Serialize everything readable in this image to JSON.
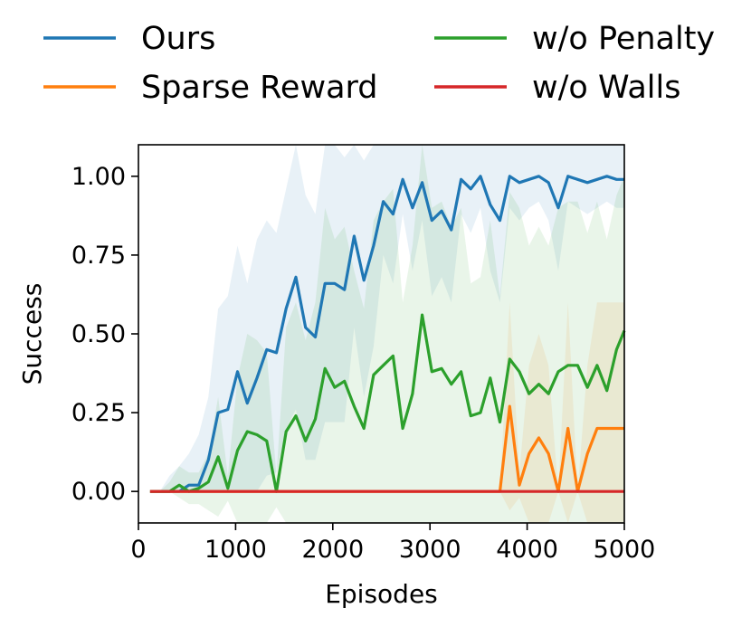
{
  "chart_data": {
    "type": "line",
    "xlabel": "Episodes",
    "ylabel": "Success",
    "xlim": [
      0,
      5000
    ],
    "ylim": [
      -0.1,
      1.1
    ],
    "xticks": [
      0,
      1000,
      2000,
      3000,
      4000,
      5000
    ],
    "xtick_labels": [
      "0",
      "1000",
      "2000",
      "3000",
      "4000",
      "5000"
    ],
    "yticks": [
      0.0,
      0.25,
      0.5,
      0.75,
      1.0
    ],
    "ytick_labels": [
      "0.00",
      "0.25",
      "0.50",
      "0.75",
      "1.00"
    ],
    "grid": false,
    "legend_position": "top",
    "x": [
      120,
      220,
      320,
      420,
      520,
      620,
      720,
      820,
      920,
      1020,
      1120,
      1220,
      1320,
      1420,
      1520,
      1620,
      1720,
      1820,
      1920,
      2020,
      2120,
      2220,
      2320,
      2420,
      2520,
      2620,
      2720,
      2820,
      2920,
      3020,
      3120,
      3220,
      3320,
      3420,
      3520,
      3620,
      3720,
      3820,
      3920,
      4020,
      4120,
      4220,
      4320,
      4420,
      4520,
      4620,
      4720,
      4820,
      4920,
      5000
    ],
    "series": [
      {
        "name": "Ours",
        "color": "#1f77b4",
        "values": [
          0,
          0,
          0,
          0,
          0.02,
          0.02,
          0.1,
          0.25,
          0.26,
          0.38,
          0.28,
          0.36,
          0.45,
          0.44,
          0.58,
          0.68,
          0.52,
          0.49,
          0.66,
          0.66,
          0.64,
          0.81,
          0.67,
          0.78,
          0.92,
          0.88,
          0.99,
          0.9,
          0.98,
          0.86,
          0.89,
          0.83,
          0.99,
          0.96,
          1.0,
          0.91,
          0.86,
          1.0,
          0.98,
          0.99,
          1.0,
          0.98,
          0.9,
          1.0,
          0.99,
          0.98,
          0.99,
          1.0,
          0.99,
          0.99
        ],
        "band_upper": [
          0,
          0,
          0.05,
          0.08,
          0.12,
          0.18,
          0.3,
          0.58,
          0.62,
          0.78,
          0.66,
          0.8,
          0.86,
          0.82,
          0.96,
          1.1,
          0.94,
          0.88,
          1.1,
          1.1,
          1.06,
          1.1,
          1.05,
          1.1,
          1.1,
          1.1,
          1.1,
          1.1,
          1.1,
          1.1,
          1.1,
          1.1,
          1.1,
          1.1,
          1.1,
          1.1,
          1.1,
          1.1,
          1.1,
          1.1,
          1.1,
          1.1,
          1.1,
          1.1,
          1.1,
          1.1,
          1.1,
          1.1,
          1.1,
          1.1
        ],
        "band_lower": [
          0,
          0,
          0,
          0,
          0,
          0,
          0,
          0,
          0,
          0,
          0,
          0,
          0.05,
          0.06,
          0.2,
          0.26,
          0.1,
          0.1,
          0.22,
          0.22,
          0.22,
          0.52,
          0.3,
          0.46,
          0.75,
          0.66,
          0.88,
          0.7,
          0.86,
          0.62,
          0.68,
          0.6,
          0.88,
          0.82,
          0.9,
          0.7,
          0.6,
          0.9,
          0.86,
          0.9,
          0.92,
          0.86,
          0.7,
          0.92,
          0.9,
          0.88,
          0.9,
          0.92,
          0.9,
          0.9
        ]
      },
      {
        "name": "Sparse Reward",
        "color": "#ff7f0e",
        "values": [
          0,
          0,
          0,
          0,
          0,
          0,
          0,
          0,
          0,
          0,
          0,
          0,
          0,
          0,
          0,
          0,
          0,
          0,
          0,
          0,
          0,
          0,
          0,
          0,
          0,
          0,
          0,
          0,
          0,
          0,
          0,
          0,
          0,
          0,
          0,
          0,
          0,
          0.27,
          0.02,
          0.12,
          0.17,
          0.12,
          0,
          0.2,
          0,
          0.12,
          0.2,
          0.2,
          0.2,
          0.2
        ],
        "band_upper": [
          0,
          0,
          0,
          0,
          0,
          0,
          0,
          0,
          0,
          0,
          0,
          0,
          0,
          0,
          0,
          0,
          0,
          0,
          0,
          0,
          0,
          0,
          0,
          0,
          0,
          0,
          0,
          0,
          0,
          0,
          0,
          0,
          0,
          0,
          0,
          0,
          0,
          0.6,
          0.06,
          0.4,
          0.5,
          0.4,
          0,
          0.6,
          0,
          0.4,
          0.6,
          0.6,
          0.6,
          0.6
        ],
        "band_lower": [
          0,
          0,
          0,
          0,
          0,
          0,
          0,
          0,
          0,
          0,
          0,
          0,
          0,
          0,
          0,
          0,
          0,
          0,
          0,
          0,
          0,
          0,
          0,
          0,
          0,
          0,
          0,
          0,
          0,
          0,
          0,
          0,
          0,
          0,
          0,
          0,
          0,
          -0.06,
          -0.02,
          -0.1,
          -0.1,
          -0.1,
          0,
          -0.1,
          0,
          -0.1,
          -0.1,
          -0.1,
          -0.1,
          -0.1
        ]
      },
      {
        "name": "w/o Penalty",
        "color": "#2ca02c",
        "values": [
          0,
          0,
          0,
          0.02,
          0,
          0.01,
          0.03,
          0.11,
          0.01,
          0.13,
          0.19,
          0.18,
          0.16,
          0,
          0.19,
          0.24,
          0.16,
          0.23,
          0.39,
          0.33,
          0.35,
          0.27,
          0.2,
          0.37,
          0.4,
          0.43,
          0.2,
          0.31,
          0.56,
          0.38,
          0.39,
          0.34,
          0.38,
          0.24,
          0.25,
          0.36,
          0.22,
          0.42,
          0.38,
          0.31,
          0.34,
          0.31,
          0.38,
          0.4,
          0.4,
          0.33,
          0.4,
          0.32,
          0.45,
          0.51
        ],
        "band_upper": [
          0,
          0,
          0.03,
          0.08,
          0.06,
          0.06,
          0.12,
          0.3,
          0.05,
          0.36,
          0.5,
          0.48,
          0.44,
          0.05,
          0.52,
          0.6,
          0.48,
          0.6,
          0.9,
          0.8,
          0.84,
          0.7,
          0.58,
          0.86,
          0.92,
          0.96,
          0.6,
          0.78,
          1.1,
          0.9,
          0.92,
          0.84,
          0.9,
          0.66,
          0.68,
          0.86,
          0.62,
          0.95,
          0.9,
          0.78,
          0.84,
          0.78,
          0.9,
          0.92,
          0.92,
          0.82,
          0.92,
          0.8,
          0.94,
          1.0
        ],
        "band_lower": [
          0,
          0,
          0,
          -0.02,
          -0.04,
          -0.04,
          -0.06,
          -0.08,
          -0.03,
          -0.1,
          -0.1,
          -0.1,
          -0.1,
          -0.05,
          -0.1,
          -0.1,
          -0.1,
          -0.1,
          -0.1,
          -0.1,
          -0.1,
          -0.1,
          -0.1,
          -0.1,
          -0.1,
          -0.1,
          -0.1,
          -0.1,
          -0.1,
          -0.1,
          -0.1,
          -0.1,
          -0.1,
          -0.1,
          -0.1,
          -0.1,
          -0.1,
          -0.1,
          -0.1,
          -0.1,
          -0.1,
          -0.1,
          -0.1,
          -0.1,
          -0.1,
          -0.1,
          -0.1,
          -0.1,
          -0.1,
          -0.1
        ]
      },
      {
        "name": "w/o Walls",
        "color": "#d62728",
        "values": [
          0,
          0,
          0,
          0,
          0,
          0,
          0,
          0,
          0,
          0,
          0,
          0,
          0,
          0,
          0,
          0,
          0,
          0,
          0,
          0,
          0,
          0,
          0,
          0,
          0,
          0,
          0,
          0,
          0,
          0,
          0,
          0,
          0,
          0,
          0,
          0,
          0,
          0,
          0,
          0,
          0,
          0,
          0,
          0,
          0,
          0,
          0,
          0,
          0,
          0
        ]
      }
    ]
  }
}
